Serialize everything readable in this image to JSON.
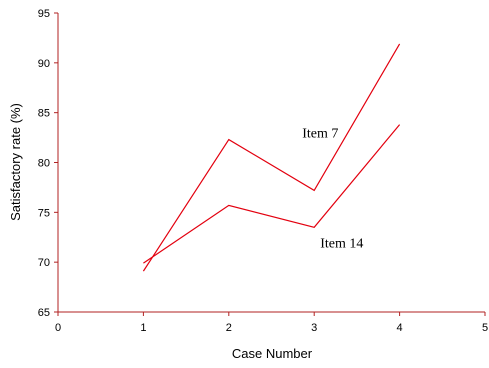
{
  "chart_data": {
    "type": "line",
    "title": "",
    "xlabel": "Case Number",
    "ylabel": "Satisfactory rate (%)",
    "xlim": [
      0,
      5
    ],
    "ylim": [
      65,
      95
    ],
    "xticks": [
      "0",
      "1",
      "2",
      "3",
      "4",
      "5"
    ],
    "yticks": [
      "65",
      "70",
      "75",
      "80",
      "85",
      "90",
      "95"
    ],
    "grid": false,
    "line_color": "#e3000f",
    "axis_color": "#b22222",
    "series": [
      {
        "name": "Item 7",
        "x": [
          1,
          2,
          3,
          4
        ],
        "y": [
          69.1,
          82.3,
          77.2,
          91.9
        ]
      },
      {
        "name": "Item 14",
        "x": [
          1,
          2,
          3,
          4
        ],
        "y": [
          69.9,
          75.7,
          73.5,
          83.8
        ]
      }
    ]
  }
}
